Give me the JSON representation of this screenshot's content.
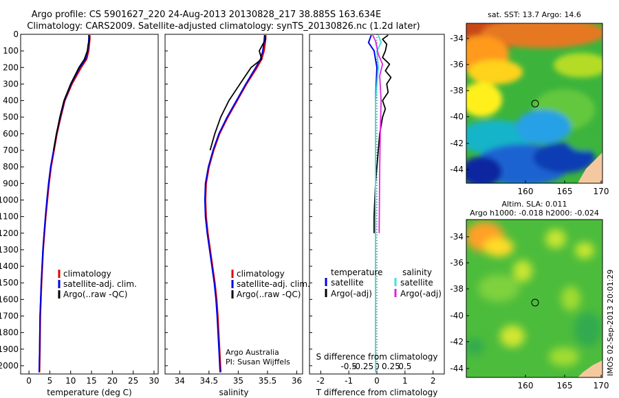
{
  "header": {
    "line1": "Argo profile: CS 5901627_220 24-Aug-2013 20130828_217 38.885S 163.634E",
    "line2": "Climatology: CARS2009. Satellite-adjusted climatology: synTS_20130826.nc (1.2d later)"
  },
  "colors": {
    "climatology": "#e00000",
    "satellite": "#0000e0",
    "argo": "#000000",
    "satellite_sal": "#40e0e0",
    "argo_sal": "#e020e0",
    "land": "#f5c9a0"
  },
  "chart_data": [
    {
      "type": "line",
      "id": "temperature",
      "xlabel": "temperature (deg C)",
      "xlim": [
        -2,
        31
      ],
      "xticks": [
        0,
        5,
        10,
        15,
        20,
        25,
        30
      ],
      "ylim": [
        0,
        2050
      ],
      "yticks": [
        0,
        100,
        200,
        300,
        400,
        500,
        600,
        700,
        800,
        900,
        1000,
        1100,
        1200,
        1300,
        1400,
        1500,
        1600,
        1700,
        1800,
        1900,
        2000
      ],
      "legend": [
        "climatology",
        "satellite-adj. clim.",
        "Argo(..raw -QC)"
      ],
      "series": [
        {
          "name": "climatology",
          "x": [
            14.6,
            14.5,
            14.3,
            13.8,
            12.5,
            10.3,
            8.6,
            7.6,
            6.7,
            6.0,
            5.3,
            4.8,
            4.4,
            4.0,
            3.7,
            3.4,
            3.2,
            3.0,
            2.85,
            2.7,
            2.6,
            2.5
          ],
          "y": [
            5,
            50,
            100,
            150,
            200,
            300,
            400,
            500,
            600,
            700,
            800,
            900,
            1000,
            1100,
            1200,
            1300,
            1400,
            1500,
            1600,
            1700,
            1900,
            2040
          ]
        },
        {
          "name": "satellite-adj. clim.",
          "x": [
            14.4,
            14.3,
            14.1,
            13.6,
            12.2,
            10.1,
            8.5,
            7.5,
            6.6,
            5.9,
            5.2,
            4.7,
            4.3,
            3.95,
            3.65,
            3.35,
            3.15,
            2.95,
            2.8,
            2.65,
            2.55,
            2.45
          ],
          "y": [
            5,
            50,
            100,
            150,
            200,
            300,
            400,
            500,
            600,
            700,
            800,
            900,
            1000,
            1100,
            1200,
            1300,
            1400,
            1500,
            1600,
            1700,
            1900,
            2040
          ]
        },
        {
          "name": "Argo(..raw -QC)",
          "x": [
            14.3,
            14.6,
            14.2,
            14.0,
            13.3,
            12.0,
            10.0,
            8.4,
            7.4,
            6.6,
            5.9
          ],
          "y": [
            5,
            30,
            60,
            100,
            150,
            200,
            300,
            400,
            500,
            600,
            700
          ]
        }
      ]
    },
    {
      "type": "line",
      "id": "salinity",
      "xlabel": "salinity",
      "xlim": [
        33.75,
        36.1
      ],
      "xticks": [
        34,
        34.5,
        35,
        35.5,
        36
      ],
      "ylim": [
        0,
        2050
      ],
      "legend": [
        "climatology",
        "satellite-adj. clim.",
        "Argo(..raw -QC)"
      ],
      "annotation": [
        "Argo Australia",
        "PI: Susan Wijffels"
      ],
      "series": [
        {
          "name": "climatology",
          "x": [
            35.47,
            35.46,
            35.44,
            35.4,
            35.32,
            35.14,
            34.98,
            34.82,
            34.68,
            34.58,
            34.5,
            34.45,
            34.44,
            34.45,
            34.48,
            34.52,
            34.56,
            34.6,
            34.63,
            34.65,
            34.68,
            34.7
          ],
          "y": [
            5,
            50,
            100,
            150,
            200,
            300,
            400,
            500,
            600,
            700,
            800,
            900,
            1000,
            1100,
            1200,
            1300,
            1400,
            1500,
            1600,
            1700,
            1900,
            2040
          ]
        },
        {
          "name": "satellite-adj. clim.",
          "x": [
            35.45,
            35.44,
            35.42,
            35.38,
            35.3,
            35.13,
            34.97,
            34.81,
            34.67,
            34.57,
            34.49,
            34.44,
            34.43,
            34.44,
            34.47,
            34.51,
            34.55,
            34.59,
            34.62,
            34.64,
            34.67,
            34.69
          ],
          "y": [
            5,
            50,
            100,
            150,
            200,
            300,
            400,
            500,
            600,
            700,
            800,
            900,
            1000,
            1100,
            1200,
            1300,
            1400,
            1500,
            1600,
            1700,
            1900,
            2040
          ]
        },
        {
          "name": "Argo(..raw -QC)",
          "x": [
            35.45,
            35.47,
            35.42,
            35.36,
            35.4,
            35.22,
            35.03,
            34.84,
            34.7,
            34.6,
            34.52
          ],
          "y": [
            5,
            30,
            60,
            100,
            150,
            200,
            300,
            400,
            500,
            600,
            700
          ]
        }
      ]
    },
    {
      "type": "line",
      "id": "difference",
      "xlabel": "T difference from climatology",
      "top_label": "S difference from climatology",
      "xlim": [
        -2.4,
        2.4
      ],
      "xticks": [
        -2,
        -1,
        0,
        1,
        2
      ],
      "sticks": [
        "-0.5",
        "-0.25",
        "0",
        "0.25",
        "0.5"
      ],
      "ylim": [
        0,
        2050
      ],
      "legend_headers": [
        "temperature",
        "salinity"
      ],
      "legend": [
        "satellite",
        "Argo(-adj)",
        "satellite",
        "Argo(-adj)"
      ],
      "series": [
        {
          "name": "satellite",
          "x": [
            -0.2,
            -0.3,
            -0.1,
            0.0,
            -0.05,
            -0.05,
            -0.05,
            -0.05,
            -0.05,
            -0.05
          ],
          "y": [
            5,
            50,
            100,
            200,
            400,
            800,
            1200,
            1600,
            1900,
            2040
          ]
        },
        {
          "name": "Argo(-adj)",
          "x": [
            0.4,
            0.2,
            0.35,
            0.3,
            0.2,
            0.45,
            0.3,
            0.5,
            0.35,
            0.4,
            0.2,
            0.3,
            0.2,
            0.1,
            0.05,
            -0.05,
            -0.1,
            -0.1
          ],
          "y": [
            5,
            30,
            60,
            100,
            140,
            180,
            220,
            260,
            300,
            350,
            400,
            450,
            500,
            600,
            700,
            900,
            1100,
            1200
          ]
        },
        {
          "name": "satellite",
          "x": [
            0.05,
            0.15,
            0.0,
            0.05,
            -0.05,
            -0.05,
            -0.05,
            -0.05,
            -0.05
          ],
          "y": [
            5,
            50,
            100,
            200,
            400,
            800,
            1200,
            1600,
            2040
          ]
        },
        {
          "name": "Argo(-adj)",
          "x": [
            -0.15,
            -0.05,
            0.0,
            0.05,
            0.2,
            0.1,
            0.15,
            0.12,
            0.1,
            0.08
          ],
          "y": [
            5,
            40,
            80,
            120,
            180,
            250,
            400,
            600,
            800,
            1200
          ]
        }
      ]
    }
  ],
  "maps": [
    {
      "id": "sst",
      "title1": "sat. SST: 13.7 Argo: 14.6",
      "xticks": [
        "160",
        "165",
        "170"
      ],
      "yticks": [
        "-34",
        "-36",
        "-38",
        "-40",
        "-42",
        "-44"
      ]
    },
    {
      "id": "sla",
      "title1": "Altim. SLA: 0.011",
      "title2": "Argo h1000: -0.018 h2000: -0.024",
      "xticks": [
        "160",
        "165",
        "170"
      ],
      "yticks": [
        "-34",
        "-36",
        "-38",
        "-40",
        "-42",
        "-44"
      ]
    }
  ],
  "footer": {
    "stamp": "IMOS 02-Sep-2013 20:01:29"
  }
}
